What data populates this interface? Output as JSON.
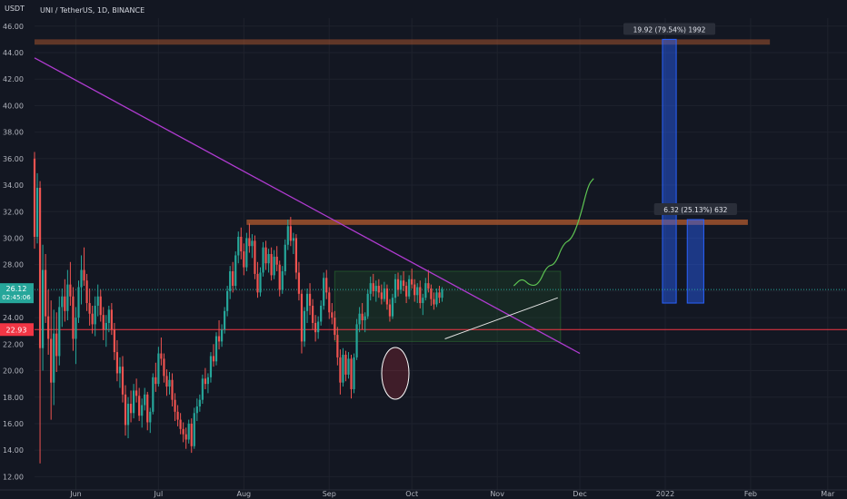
{
  "header": {
    "currency": "USDT",
    "symbol_title": "UNI / TetherUS, 1D, BINANCE"
  },
  "price_badges": {
    "last_price": "26.12",
    "countdown": "02:45:06",
    "level_price": "22.93"
  },
  "measure_labels": {
    "upper": "19.92 (79.54%) 1992",
    "lower": "6.32 (25.13%) 632"
  },
  "colors": {
    "background": "#131722",
    "up_candle": "#26a69a",
    "down_candle": "#ef5350",
    "trendline": "#b03bd1",
    "resistance_band": "#a0522d",
    "support_line": "#f23645",
    "range_box": "#2e7d32",
    "projection_path": "#5ec453",
    "measure_bars": "#2962ff",
    "last_price_badge": "#26a69a"
  },
  "chart_data": {
    "type": "candlestick",
    "x_axis_labels": [
      "Jun",
      "Jul",
      "Aug",
      "Sep",
      "Oct",
      "Nov",
      "Dec",
      "2022",
      "Feb",
      "Mar"
    ],
    "y_ticks": [
      12.0,
      14.0,
      16.0,
      18.0,
      20.0,
      22.0,
      24.0,
      26.0,
      28.0,
      30.0,
      32.0,
      34.0,
      36.0,
      38.0,
      40.0,
      42.0,
      44.0,
      46.0
    ],
    "ylim": [
      11.0,
      46.6
    ],
    "month_starts": [
      "2021-06-01",
      "2021-07-01",
      "2021-08-01",
      "2021-09-01",
      "2021-10-01",
      "2021-11-01",
      "2021-12-01",
      "2022-01-01",
      "2022-02-01",
      "2022-03-01"
    ],
    "xlim": [
      "2021-05-17",
      "2022-03-08"
    ],
    "candles": {
      "first_date": "2021-05-17",
      "ohlc": [
        [
          36.0,
          36.5,
          29.2,
          30.1
        ],
        [
          30.1,
          34.9,
          29.6,
          33.8
        ],
        [
          33.8,
          34.3,
          13.0,
          21.7
        ],
        [
          21.7,
          29.5,
          20.0,
          27.6
        ],
        [
          27.6,
          28.8,
          23.6,
          24.1
        ],
        [
          24.1,
          26.1,
          21.2,
          22.4
        ],
        [
          22.4,
          25.3,
          16.3,
          19.1
        ],
        [
          19.1,
          24.6,
          17.4,
          22.8
        ],
        [
          22.8,
          24.4,
          19.9,
          21.1
        ],
        [
          21.1,
          25.6,
          20.4,
          24.8
        ],
        [
          24.8,
          26.2,
          23.3,
          25.6
        ],
        [
          25.6,
          26.9,
          23.7,
          24.5
        ],
        [
          24.5,
          27.6,
          23.8,
          26.5
        ],
        [
          26.5,
          28.2,
          24.9,
          25.6
        ],
        [
          25.6,
          26.3,
          21.5,
          22.4
        ],
        [
          22.4,
          24.8,
          20.5,
          24.0
        ],
        [
          24.0,
          26.8,
          23.6,
          26.3
        ],
        [
          26.3,
          28.7,
          25.0,
          27.6
        ],
        [
          27.6,
          29.3,
          26.4,
          26.8
        ],
        [
          26.8,
          27.3,
          24.5,
          25.1
        ],
        [
          25.1,
          26.2,
          23.4,
          24.3
        ],
        [
          24.3,
          24.9,
          22.8,
          23.5
        ],
        [
          23.5,
          25.6,
          22.6,
          24.9
        ],
        [
          24.9,
          26.5,
          24.1,
          25.6
        ],
        [
          25.6,
          26.1,
          23.7,
          24.2
        ],
        [
          24.2,
          24.8,
          22.3,
          23.1
        ],
        [
          23.1,
          24.2,
          21.8,
          23.6
        ],
        [
          23.6,
          24.9,
          22.9,
          24.6
        ],
        [
          24.6,
          25.1,
          22.7,
          23.1
        ],
        [
          23.1,
          23.6,
          20.8,
          21.4
        ],
        [
          21.4,
          22.3,
          19.2,
          19.8
        ],
        [
          19.8,
          21.0,
          18.7,
          20.3
        ],
        [
          20.3,
          21.1,
          17.6,
          18.2
        ],
        [
          18.2,
          18.9,
          15.1,
          15.9
        ],
        [
          15.9,
          18.0,
          14.9,
          17.5
        ],
        [
          17.5,
          18.5,
          16.1,
          16.8
        ],
        [
          16.8,
          19.0,
          16.4,
          18.5
        ],
        [
          18.5,
          19.4,
          17.6,
          18.1
        ],
        [
          18.1,
          18.7,
          16.2,
          16.6
        ],
        [
          16.6,
          17.9,
          15.7,
          17.4
        ],
        [
          17.4,
          18.7,
          17.0,
          18.2
        ],
        [
          18.2,
          18.4,
          15.5,
          16.1
        ],
        [
          16.1,
          17.2,
          15.3,
          16.9
        ],
        [
          16.9,
          19.8,
          16.7,
          19.5
        ],
        [
          19.5,
          20.6,
          18.4,
          19.0
        ],
        [
          19.0,
          21.8,
          18.8,
          21.3
        ],
        [
          21.3,
          22.5,
          20.4,
          20.9
        ],
        [
          20.9,
          21.3,
          19.1,
          19.6
        ],
        [
          19.6,
          20.1,
          18.1,
          18.8
        ],
        [
          18.8,
          19.9,
          18.2,
          19.3
        ],
        [
          19.3,
          19.8,
          17.3,
          17.8
        ],
        [
          17.8,
          18.3,
          16.2,
          16.9
        ],
        [
          16.9,
          17.4,
          15.8,
          16.3
        ],
        [
          16.3,
          16.8,
          15.2,
          15.6
        ],
        [
          15.6,
          16.1,
          14.6,
          15.2
        ],
        [
          15.2,
          15.7,
          14.1,
          14.8
        ],
        [
          14.8,
          16.3,
          14.5,
          16.0
        ],
        [
          16.0,
          16.4,
          13.8,
          14.3
        ],
        [
          14.3,
          17.2,
          14.1,
          16.8
        ],
        [
          16.8,
          17.9,
          16.2,
          17.3
        ],
        [
          17.3,
          18.2,
          16.9,
          17.8
        ],
        [
          17.8,
          19.7,
          17.5,
          19.4
        ],
        [
          19.4,
          20.2,
          18.6,
          19.0
        ],
        [
          19.0,
          19.8,
          18.3,
          19.5
        ],
        [
          19.5,
          21.4,
          19.1,
          21.1
        ],
        [
          21.1,
          22.0,
          20.3,
          20.7
        ],
        [
          20.7,
          22.9,
          20.4,
          22.6
        ],
        [
          22.6,
          23.8,
          21.6,
          22.2
        ],
        [
          22.2,
          23.5,
          21.8,
          23.1
        ],
        [
          23.1,
          24.8,
          22.8,
          24.5
        ],
        [
          24.5,
          26.4,
          24.1,
          26.0
        ],
        [
          26.0,
          27.9,
          25.4,
          27.5
        ],
        [
          27.5,
          28.2,
          25.9,
          26.4
        ],
        [
          26.4,
          29.0,
          26.1,
          28.7
        ],
        [
          28.7,
          30.5,
          28.1,
          30.1
        ],
        [
          30.1,
          30.8,
          28.4,
          29.0
        ],
        [
          29.0,
          29.6,
          27.2,
          27.8
        ],
        [
          27.8,
          30.4,
          27.5,
          30.0
        ],
        [
          30.0,
          31.1,
          28.9,
          29.4
        ],
        [
          29.4,
          30.3,
          28.5,
          29.8
        ],
        [
          29.8,
          30.2,
          26.9,
          27.3
        ],
        [
          27.3,
          28.2,
          25.5,
          25.9
        ],
        [
          25.9,
          27.8,
          25.6,
          27.4
        ],
        [
          27.4,
          29.7,
          27.1,
          29.3
        ],
        [
          29.3,
          29.8,
          27.6,
          28.1
        ],
        [
          28.1,
          29.2,
          27.4,
          28.8
        ],
        [
          28.8,
          29.3,
          26.8,
          27.2
        ],
        [
          27.2,
          29.1,
          26.9,
          28.6
        ],
        [
          28.6,
          29.4,
          27.5,
          28.0
        ],
        [
          28.0,
          28.3,
          25.6,
          26.1
        ],
        [
          26.1,
          27.9,
          25.8,
          27.5
        ],
        [
          27.5,
          29.9,
          27.2,
          29.5
        ],
        [
          29.5,
          31.4,
          29.1,
          30.9
        ],
        [
          30.9,
          31.6,
          29.4,
          29.8
        ],
        [
          29.8,
          30.4,
          28.8,
          30.0
        ],
        [
          30.0,
          30.3,
          26.9,
          27.4
        ],
        [
          27.4,
          28.2,
          25.3,
          25.8
        ],
        [
          25.8,
          26.1,
          21.3,
          22.2
        ],
        [
          22.2,
          24.8,
          21.8,
          24.5
        ],
        [
          24.5,
          26.2,
          23.6,
          25.8
        ],
        [
          25.8,
          26.6,
          24.2,
          24.9
        ],
        [
          24.9,
          25.4,
          23.1,
          23.6
        ],
        [
          23.6,
          24.2,
          22.2,
          22.9
        ],
        [
          22.9,
          24.1,
          22.4,
          23.7
        ],
        [
          23.7,
          25.3,
          23.4,
          24.9
        ],
        [
          24.9,
          27.4,
          24.6,
          27.0
        ],
        [
          27.0,
          27.6,
          25.4,
          25.9
        ],
        [
          25.9,
          26.3,
          23.9,
          24.4
        ],
        [
          24.4,
          25.1,
          23.5,
          24.0
        ],
        [
          24.0,
          24.5,
          22.3,
          22.7
        ],
        [
          22.7,
          23.3,
          20.4,
          21.0
        ],
        [
          21.0,
          21.6,
          18.2,
          19.1
        ],
        [
          19.1,
          21.7,
          18.8,
          21.2
        ],
        [
          21.2,
          21.5,
          19.2,
          19.7
        ],
        [
          19.7,
          21.4,
          19.4,
          20.9
        ],
        [
          20.9,
          21.2,
          17.9,
          18.6
        ],
        [
          18.6,
          21.3,
          18.3,
          21.0
        ],
        [
          21.0,
          23.9,
          20.8,
          23.5
        ],
        [
          23.5,
          24.8,
          22.9,
          24.3
        ],
        [
          24.3,
          25.1,
          23.1,
          23.8
        ],
        [
          23.8,
          24.4,
          22.9,
          24.1
        ],
        [
          24.1,
          26.1,
          23.9,
          25.8
        ],
        [
          25.8,
          27.1,
          25.3,
          26.6
        ],
        [
          26.6,
          27.3,
          25.6,
          26.0
        ],
        [
          26.0,
          26.8,
          25.2,
          26.4
        ],
        [
          26.4,
          26.9,
          25.5,
          25.9
        ],
        [
          25.9,
          26.5,
          25.0,
          25.4
        ],
        [
          25.4,
          26.7,
          25.2,
          26.2
        ],
        [
          26.2,
          26.5,
          24.6,
          25.0
        ],
        [
          25.0,
          25.4,
          23.7,
          24.1
        ],
        [
          24.1,
          25.8,
          23.9,
          25.5
        ],
        [
          25.5,
          27.3,
          25.1,
          26.9
        ],
        [
          26.9,
          27.4,
          25.6,
          26.1
        ],
        [
          26.1,
          27.2,
          25.8,
          26.8
        ],
        [
          26.8,
          27.5,
          26.0,
          26.4
        ],
        [
          26.4,
          26.7,
          25.1,
          25.6
        ],
        [
          25.6,
          27.2,
          25.4,
          26.9
        ],
        [
          26.9,
          27.7,
          26.2,
          26.5
        ],
        [
          26.5,
          26.9,
          25.2,
          25.7
        ],
        [
          25.7,
          26.6,
          25.1,
          26.3
        ],
        [
          26.3,
          26.8,
          24.7,
          25.1
        ],
        [
          25.1,
          25.8,
          24.2,
          25.5
        ],
        [
          25.5,
          27.0,
          25.3,
          26.6
        ],
        [
          26.6,
          27.6,
          25.9,
          26.2
        ],
        [
          26.2,
          26.5,
          24.9,
          25.4
        ],
        [
          25.4,
          25.9,
          24.6,
          25.0
        ],
        [
          25.0,
          26.2,
          24.8,
          25.9
        ],
        [
          25.9,
          26.4,
          25.1,
          25.5
        ],
        [
          25.5,
          26.3,
          25.2,
          26.12
        ]
      ]
    },
    "lines": {
      "trendline": {
        "from": {
          "date": "2021-05-17",
          "price": 43.6
        },
        "to": {
          "date": "2021-12-01",
          "price": 21.3
        }
      },
      "resistance_band": {
        "start": "2021-08-02",
        "end": "2022-01-31",
        "low": 31.0,
        "high": 31.4
      },
      "top_band": {
        "start": "2021-05-17",
        "end": "2022-02-08",
        "low": 44.6,
        "high": 45.0
      },
      "support_line": {
        "price": 23.1
      },
      "last_price_line": {
        "price": 26.12
      },
      "range_box": {
        "start": "2021-09-03",
        "end": "2021-11-24",
        "low": 22.2,
        "high": 27.5
      },
      "rising_line": {
        "from": {
          "date": "2021-10-13",
          "price": 22.4
        },
        "to": {
          "date": "2021-11-23",
          "price": 25.5
        }
      },
      "circle_highlight": {
        "date": "2021-09-25",
        "price": 19.8,
        "range_low": 17.8,
        "range_high": 21.7
      },
      "projection_path": [
        [
          "2021-11-07",
          26.4
        ],
        [
          "2021-11-10",
          27.0
        ],
        [
          "2021-11-13",
          26.4
        ],
        [
          "2021-11-16",
          26.5
        ],
        [
          "2021-11-19",
          27.9
        ],
        [
          "2021-11-22",
          28.0
        ],
        [
          "2021-11-25",
          29.6
        ],
        [
          "2021-11-28",
          29.9
        ],
        [
          "2021-12-01",
          31.5
        ],
        [
          "2021-12-04",
          34.0
        ],
        [
          "2021-12-06",
          34.5
        ]
      ],
      "measure_bars": [
        {
          "start": "2021-12-31",
          "end": "2022-01-05",
          "low": 25.1,
          "high": 45.0,
          "label": "upper"
        },
        {
          "start": "2022-01-09",
          "end": "2022-01-15",
          "low": 25.1,
          "high": 31.4,
          "label": "lower"
        }
      ]
    }
  }
}
